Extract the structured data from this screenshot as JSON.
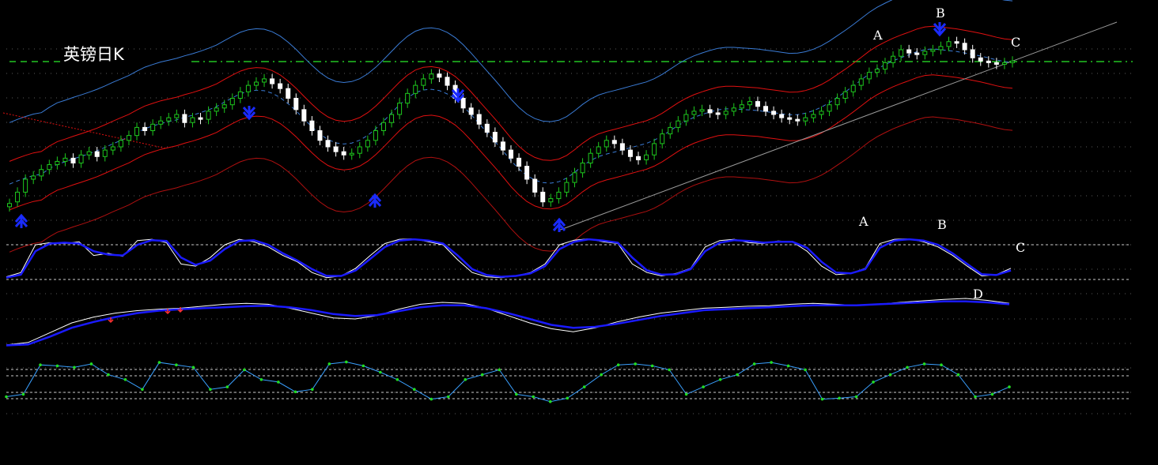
{
  "title": "英镑日K",
  "colors": {
    "background": "#000000",
    "grid": "#5a5a5a",
    "resistance_line": "#22c422",
    "candle_up": "#1ec81e",
    "candle_down": "#ffffff",
    "upper_envelope": "#3a7bd5",
    "inner_envelope": "#e01010",
    "outer_envelope": "#b01010",
    "trendline": "#9a9a9a",
    "fast_line": "#ffffff",
    "slow_line": "#1a1aff",
    "rsi_line": "#3aa0ff",
    "rsi_dots": "#22dd22",
    "arrow": "#1a2bff",
    "small_arrow": "#ff3030",
    "level_line": "#cccccc",
    "label": "#ffffff"
  },
  "labels": {
    "main_A": "A",
    "main_B": "B",
    "main_C": "C",
    "osc_A": "A",
    "osc_B": "B",
    "osc_C": "C",
    "macd_D": "D"
  },
  "chart_data": [
    {
      "type": "candlestick",
      "title": "英镑日K",
      "ylim": [
        0,
        100
      ],
      "close": [
        5,
        12,
        20,
        22,
        26,
        29,
        31,
        33,
        30,
        35,
        37,
        34,
        38,
        40,
        44,
        47,
        52,
        50,
        54,
        56,
        58,
        60,
        55,
        58,
        57,
        62,
        64,
        66,
        70,
        74,
        78,
        80,
        82,
        79,
        76,
        70,
        63,
        56,
        50,
        44,
        40,
        37,
        35,
        36,
        40,
        44,
        50,
        55,
        60,
        67,
        73,
        78,
        82,
        85,
        83,
        78,
        70,
        64,
        60,
        54,
        49,
        43,
        38,
        33,
        28,
        20,
        12,
        6,
        8,
        12,
        18,
        24,
        30,
        36,
        40,
        44,
        42,
        38,
        34,
        32,
        35,
        42,
        48,
        52,
        56,
        60,
        62,
        63,
        61,
        60,
        62,
        64,
        66,
        68,
        65,
        62,
        60,
        58,
        57,
        56,
        58,
        60,
        62,
        66,
        70,
        74,
        78,
        82,
        86,
        88,
        92,
        96,
        100,
        98,
        97,
        99,
        100,
        102,
        105,
        104,
        100,
        95,
        93,
        92,
        91,
        92,
        93
      ],
      "open": [
        3,
        6,
        12,
        20,
        22,
        26,
        29,
        31,
        33,
        30,
        35,
        37,
        34,
        38,
        40,
        44,
        47,
        52,
        50,
        54,
        56,
        58,
        60,
        55,
        58,
        57,
        62,
        64,
        66,
        70,
        74,
        78,
        80,
        82,
        79,
        76,
        70,
        63,
        56,
        50,
        44,
        40,
        37,
        35,
        36,
        40,
        44,
        50,
        55,
        60,
        67,
        73,
        78,
        82,
        85,
        83,
        78,
        70,
        64,
        60,
        54,
        49,
        43,
        38,
        33,
        28,
        20,
        12,
        6,
        8,
        12,
        18,
        24,
        30,
        36,
        40,
        44,
        42,
        38,
        34,
        32,
        35,
        42,
        48,
        52,
        56,
        60,
        62,
        63,
        61,
        60,
        62,
        64,
        66,
        68,
        65,
        62,
        60,
        58,
        57,
        56,
        58,
        60,
        62,
        66,
        70,
        74,
        78,
        82,
        86,
        88,
        92,
        96,
        100,
        98,
        97,
        99,
        100,
        102,
        105,
        104,
        100,
        95,
        93,
        92,
        91,
        92
      ],
      "upper_envelope": [
        48,
        47,
        46,
        47,
        49,
        51,
        53,
        56,
        58,
        60,
        62,
        64,
        66,
        69,
        72,
        76,
        80,
        84,
        87,
        89,
        89,
        87,
        84,
        80,
        76,
        72,
        70,
        69,
        70,
        72,
        76,
        81,
        86,
        90,
        93,
        94,
        93,
        89,
        83,
        76,
        70,
        65,
        62,
        61,
        62,
        64,
        68,
        73,
        79,
        85,
        90,
        95,
        98,
        100,
        100,
        98,
        94,
        88,
        81,
        74,
        67,
        61,
        56,
        52,
        49,
        46,
        44,
        42,
        40,
        38,
        37,
        36,
        36,
        37,
        39,
        42,
        45,
        48,
        50,
        51,
        52,
        53,
        54,
        55,
        57,
        60,
        62,
        64,
        66,
        68,
        70,
        72,
        75,
        78,
        80,
        82,
        84,
        86,
        88,
        90,
        92,
        95,
        98,
        101,
        104,
        108,
        112,
        116,
        118,
        119,
        118
      ],
      "trendline": [
        [
          68,
          0
        ],
        [
          126,
          66
        ],
        [
          140,
          80
        ]
      ]
    },
    {
      "type": "line",
      "title": "",
      "ylim": [
        0,
        100
      ],
      "series": [
        {
          "values": [
            10,
            20,
            85,
            90,
            88,
            92,
            60,
            65,
            58,
            95,
            98,
            90,
            40,
            35,
            55,
            85,
            98,
            92,
            80,
            60,
            45,
            20,
            8,
            12,
            30,
            60,
            88,
            98,
            99,
            92,
            85,
            50,
            20,
            10,
            8,
            12,
            20,
            40,
            85,
            96,
            99,
            92,
            88,
            40,
            20,
            12,
            18,
            30,
            80,
            95,
            98,
            90,
            88,
            94,
            92,
            70,
            35,
            15,
            18,
            30,
            88,
            98,
            99,
            92,
            80,
            60,
            35,
            12,
            15,
            30
          ]
        },
        {
          "values": [
            8,
            15,
            70,
            88,
            90,
            88,
            70,
            62,
            60,
            85,
            96,
            94,
            55,
            38,
            48,
            75,
            94,
            96,
            85,
            65,
            48,
            28,
            12,
            12,
            25,
            52,
            80,
            95,
            98,
            95,
            88,
            60,
            28,
            14,
            10,
            12,
            18,
            35,
            75,
            92,
            98,
            95,
            90,
            55,
            25,
            15,
            16,
            28,
            70,
            90,
            96,
            94,
            90,
            92,
            92,
            78,
            45,
            20,
            18,
            28,
            78,
            95,
            98,
            95,
            85,
            65,
            40,
            16,
            14,
            25
          ]
        }
      ]
    },
    {
      "type": "line",
      "title": "",
      "ylim": [
        0,
        100
      ],
      "series": [
        {
          "values": [
            5,
            10,
            30,
            50,
            62,
            70,
            75,
            78,
            80,
            84,
            88,
            90,
            88,
            80,
            70,
            60,
            58,
            65,
            78,
            88,
            92,
            90,
            80,
            65,
            50,
            38,
            32,
            40,
            52,
            62,
            70,
            75,
            80,
            82,
            84,
            85,
            88,
            90,
            88,
            86,
            88,
            92,
            95,
            98,
            100,
            96,
            90
          ]
        },
        {
          "values": [
            4,
            6,
            22,
            40,
            52,
            62,
            70,
            75,
            78,
            80,
            82,
            84,
            85,
            82,
            76,
            68,
            64,
            66,
            74,
            82,
            86,
            86,
            80,
            70,
            58,
            46,
            40,
            42,
            48,
            56,
            64,
            70,
            76,
            78,
            80,
            82,
            84,
            86,
            86,
            86,
            88,
            90,
            92,
            94,
            94,
            92,
            88
          ]
        }
      ]
    },
    {
      "type": "line",
      "title": "",
      "ylim": [
        0,
        100
      ],
      "series": [
        {
          "values": [
            25,
            30,
            90,
            88,
            85,
            92,
            70,
            60,
            40,
            95,
            90,
            85,
            40,
            45,
            80,
            60,
            55,
            35,
            40,
            92,
            96,
            88,
            75,
            60,
            40,
            20,
            25,
            60,
            70,
            80,
            30,
            25,
            15,
            22,
            45,
            70,
            90,
            92,
            88,
            80,
            30,
            45,
            60,
            70,
            92,
            95,
            88,
            80,
            20,
            22,
            25,
            55,
            70,
            85,
            92,
            90,
            70,
            25,
            30,
            45
          ]
        }
      ]
    }
  ]
}
